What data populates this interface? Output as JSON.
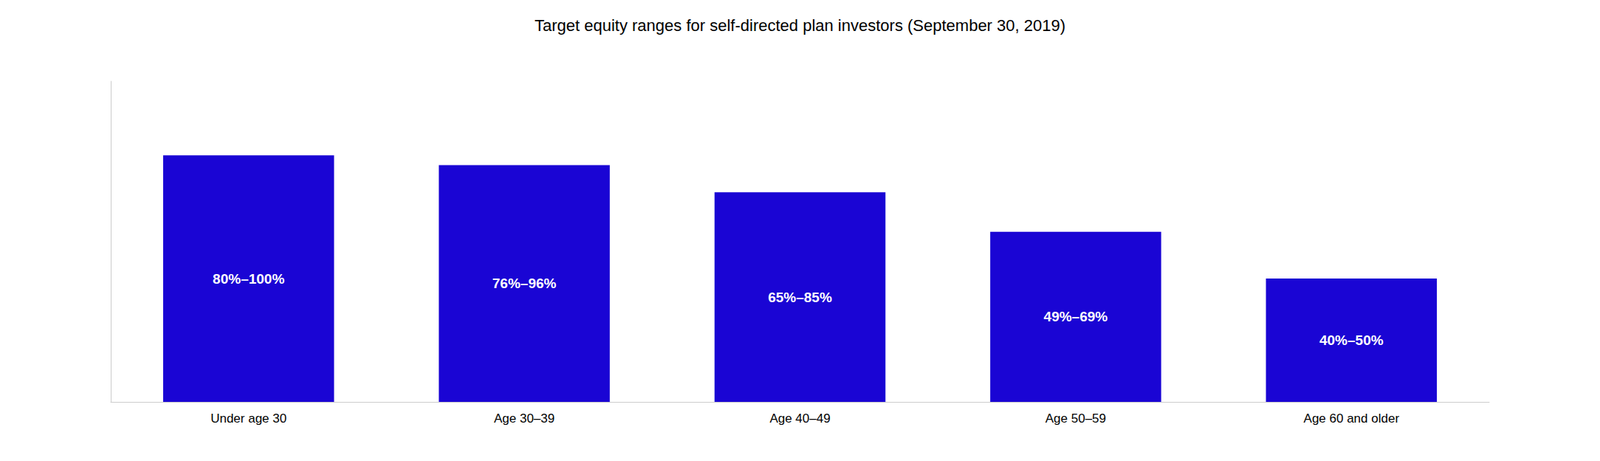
{
  "chart_data": {
    "type": "bar",
    "title": "Target equity ranges for self-directed plan investors (September 30, 2019)",
    "categories": [
      "Under age 30",
      "Age 30–39",
      "Age 40–49",
      "Age 50–59",
      "Age 60 and older"
    ],
    "values": [
      100,
      96,
      85,
      69,
      50
    ],
    "value_labels": [
      "80%–100%",
      "76%–96%",
      "65%–85%",
      "49%–69%",
      "40%–50%"
    ],
    "data_labels": true,
    "color": "#1a05d4",
    "ylim": [
      0,
      130
    ],
    "grid": false,
    "tick_labels": "x"
  }
}
